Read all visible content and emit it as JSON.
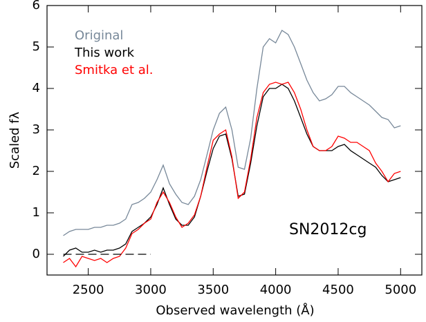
{
  "chart_data": {
    "type": "line",
    "x_label": "Observed wavelength (Å)",
    "y_label": "Scaled fλ",
    "annotation": "SN2012cg",
    "x": [
      2300,
      2350,
      2400,
      2450,
      2500,
      2550,
      2600,
      2650,
      2700,
      2750,
      2800,
      2850,
      2900,
      2950,
      3000,
      3050,
      3100,
      3150,
      3200,
      3250,
      3300,
      3350,
      3400,
      3450,
      3500,
      3550,
      3600,
      3650,
      3700,
      3750,
      3800,
      3850,
      3900,
      3950,
      4000,
      4050,
      4100,
      4150,
      4200,
      4250,
      4300,
      4350,
      4400,
      4450,
      4500,
      4550,
      4600,
      4650,
      4700,
      4750,
      4800,
      4850,
      4900,
      4950,
      5000
    ],
    "series": [
      {
        "name": "Original",
        "color": "#778899",
        "values": [
          0.45,
          0.55,
          0.6,
          0.6,
          0.6,
          0.65,
          0.65,
          0.7,
          0.7,
          0.75,
          0.85,
          1.2,
          1.25,
          1.35,
          1.5,
          1.8,
          2.15,
          1.7,
          1.45,
          1.25,
          1.2,
          1.4,
          1.8,
          2.4,
          3.0,
          3.4,
          3.55,
          3.0,
          2.1,
          2.05,
          2.8,
          4.0,
          5.0,
          5.2,
          5.1,
          5.4,
          5.3,
          5.0,
          4.6,
          4.2,
          3.9,
          3.7,
          3.75,
          3.85,
          4.05,
          4.05,
          3.9,
          3.8,
          3.7,
          3.6,
          3.45,
          3.3,
          3.25,
          3.05,
          3.1
        ]
      },
      {
        "name": "This work",
        "color": "#000000",
        "values": [
          -0.05,
          0.1,
          0.15,
          0.05,
          0.05,
          0.1,
          0.05,
          0.1,
          0.1,
          0.15,
          0.25,
          0.55,
          0.65,
          0.75,
          0.9,
          1.2,
          1.6,
          1.2,
          0.85,
          0.7,
          0.7,
          0.9,
          1.4,
          2.0,
          2.55,
          2.85,
          2.9,
          2.3,
          1.4,
          1.45,
          2.2,
          3.1,
          3.8,
          4.0,
          4.0,
          4.1,
          4.0,
          3.7,
          3.3,
          2.9,
          2.6,
          2.5,
          2.5,
          2.5,
          2.6,
          2.65,
          2.5,
          2.4,
          2.3,
          2.2,
          2.1,
          1.9,
          1.75,
          1.8,
          1.85
        ]
      },
      {
        "name": "Smitka et al.",
        "color": "#ff0000",
        "values": [
          -0.2,
          -0.1,
          -0.3,
          -0.05,
          -0.1,
          -0.15,
          -0.1,
          -0.2,
          -0.1,
          -0.05,
          0.15,
          0.5,
          0.6,
          0.75,
          0.85,
          1.25,
          1.5,
          1.25,
          0.9,
          0.65,
          0.75,
          0.95,
          1.4,
          2.1,
          2.75,
          2.9,
          3.0,
          2.35,
          1.35,
          1.5,
          2.3,
          3.3,
          3.9,
          4.1,
          4.15,
          4.1,
          4.15,
          3.9,
          3.5,
          3.0,
          2.6,
          2.5,
          2.5,
          2.6,
          2.85,
          2.8,
          2.7,
          2.7,
          2.6,
          2.5,
          2.2,
          2.0,
          1.75,
          1.95,
          2.0
        ]
      }
    ],
    "reference_line": {
      "y": 0,
      "x": [
        2300,
        3000
      ],
      "style": "dashed",
      "color": "#000000"
    },
    "xlim": [
      2170,
      5170
    ],
    "ylim": [
      -0.5,
      6.0
    ],
    "xticks": [
      2500,
      3000,
      3500,
      4000,
      4500,
      5000
    ],
    "yticks": [
      0,
      1,
      2,
      3,
      4,
      5,
      6
    ],
    "grid": false,
    "legend": "upper left"
  }
}
